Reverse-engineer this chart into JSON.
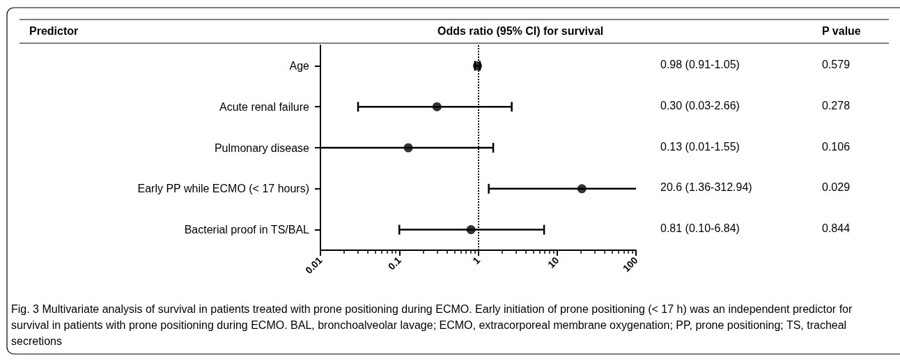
{
  "chart_data": {
    "type": "scatter",
    "orientation": "horizontal",
    "xlabel": "Odds ratio (95% CI) for survival",
    "categories": [
      "Age",
      "Acute renal failure",
      "Pulmonary disease",
      "Early PP while ECMO (< 17 hours)",
      "Bacterial proof in TS/BAL"
    ],
    "values": [
      0.98,
      0.3,
      0.13,
      20.6,
      0.81
    ],
    "errors": [
      [
        0.91,
        1.05
      ],
      [
        0.03,
        2.66
      ],
      [
        0.01,
        1.55
      ],
      [
        1.36,
        100
      ],
      [
        0.1,
        6.84
      ]
    ],
    "color": "#000000",
    "marker": "circle",
    "log": "x",
    "xlim": [
      0.01,
      100
    ],
    "xticks": [
      0.01,
      0.1,
      1,
      10,
      100
    ],
    "grid": false,
    "ref_lines": [
      {
        "axis": "x",
        "value": 1,
        "line_style": "dotted",
        "color": "#000000"
      }
    ],
    "annotations": [
      "Predictor",
      "P value",
      "0.98 (0.91-1.05)",
      "0.30 (0.03-2.66)",
      "0.13 (0.01-1.55)",
      "20.6 (1.36-312.94)",
      "0.81 (0.10-6.84)",
      "0.579",
      "0.278",
      "0.106",
      "0.029",
      "0.844",
      "Fig. 3 Multivariate analysis of survival in patients treated with prone positioning during ECMO. Early initiation of prone positioning (< 17 h) was an independent predictor for survival in patients with prone positioning during ECMO. BAL, bronchoalveolar lavage; ECMO, extracorporeal membrane oxygenation; PP, prone positioning; TS, tracheal secretions"
    ]
  }
}
